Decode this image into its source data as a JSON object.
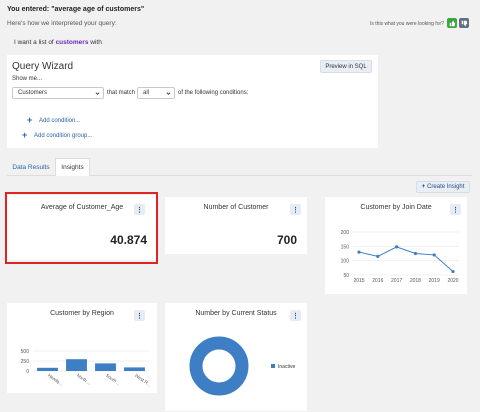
{
  "header": {
    "you_entered": "You entered: \"average age of customers\"",
    "interpreted": "Here's how we interpreted your query:",
    "feedback_question": "Is this what you were looking for?"
  },
  "query": {
    "want_prefix": "I want a list of",
    "want_entity": "customers",
    "want_suffix": "with"
  },
  "wizard": {
    "title": "Query Wizard",
    "preview_label": "Preview in SQL",
    "show_me": "Show me...",
    "entity_value": "Customers",
    "that_match": "that match",
    "match_value": "all",
    "following": "of the following conditions:",
    "add_condition": "Add condition...",
    "add_condition_group": "Add condition group..."
  },
  "tabs": [
    {
      "label": "Data Results"
    },
    {
      "label": "Insights"
    }
  ],
  "create_insight_label": "Create Insight",
  "cards": {
    "avg": {
      "title": "Average of Customer_Age",
      "value": "40.874"
    },
    "count": {
      "title": "Number of Customer",
      "value": "700"
    },
    "join": {
      "title": "Customer by Join Date"
    },
    "region": {
      "title": "Customer by Region"
    },
    "status": {
      "title": "Number by Current Status"
    },
    "menu_glyph": "⋮"
  },
  "chart_data": [
    {
      "type": "line",
      "x": [
        "2015",
        "2016",
        "2017",
        "2018",
        "2019",
        "2020"
      ],
      "series": [
        {
          "values": [
            130,
            115,
            148,
            125,
            120,
            62
          ]
        }
      ],
      "yticks": [
        "50",
        "100",
        "150",
        "200"
      ],
      "ylim": [
        50,
        200
      ],
      "color": "#3d7ec4"
    },
    {
      "type": "bar",
      "categories": [
        "Headq...",
        "North ...",
        "South ...",
        "West R..."
      ],
      "values": [
        80,
        295,
        190,
        90
      ],
      "yticks": [
        "0",
        "250",
        "500"
      ],
      "ylim": [
        0,
        500
      ],
      "color": "#3d7ec4"
    },
    {
      "type": "pie",
      "donut": true,
      "legend": [
        {
          "label": "Inactive"
        }
      ],
      "values": [
        100
      ],
      "color": "#3d7ec4"
    }
  ],
  "colors": {
    "accent": "#2a62a8",
    "keyword": "#6a2ab8",
    "highlight": "#e02424",
    "chart": "#3d7ec4"
  }
}
